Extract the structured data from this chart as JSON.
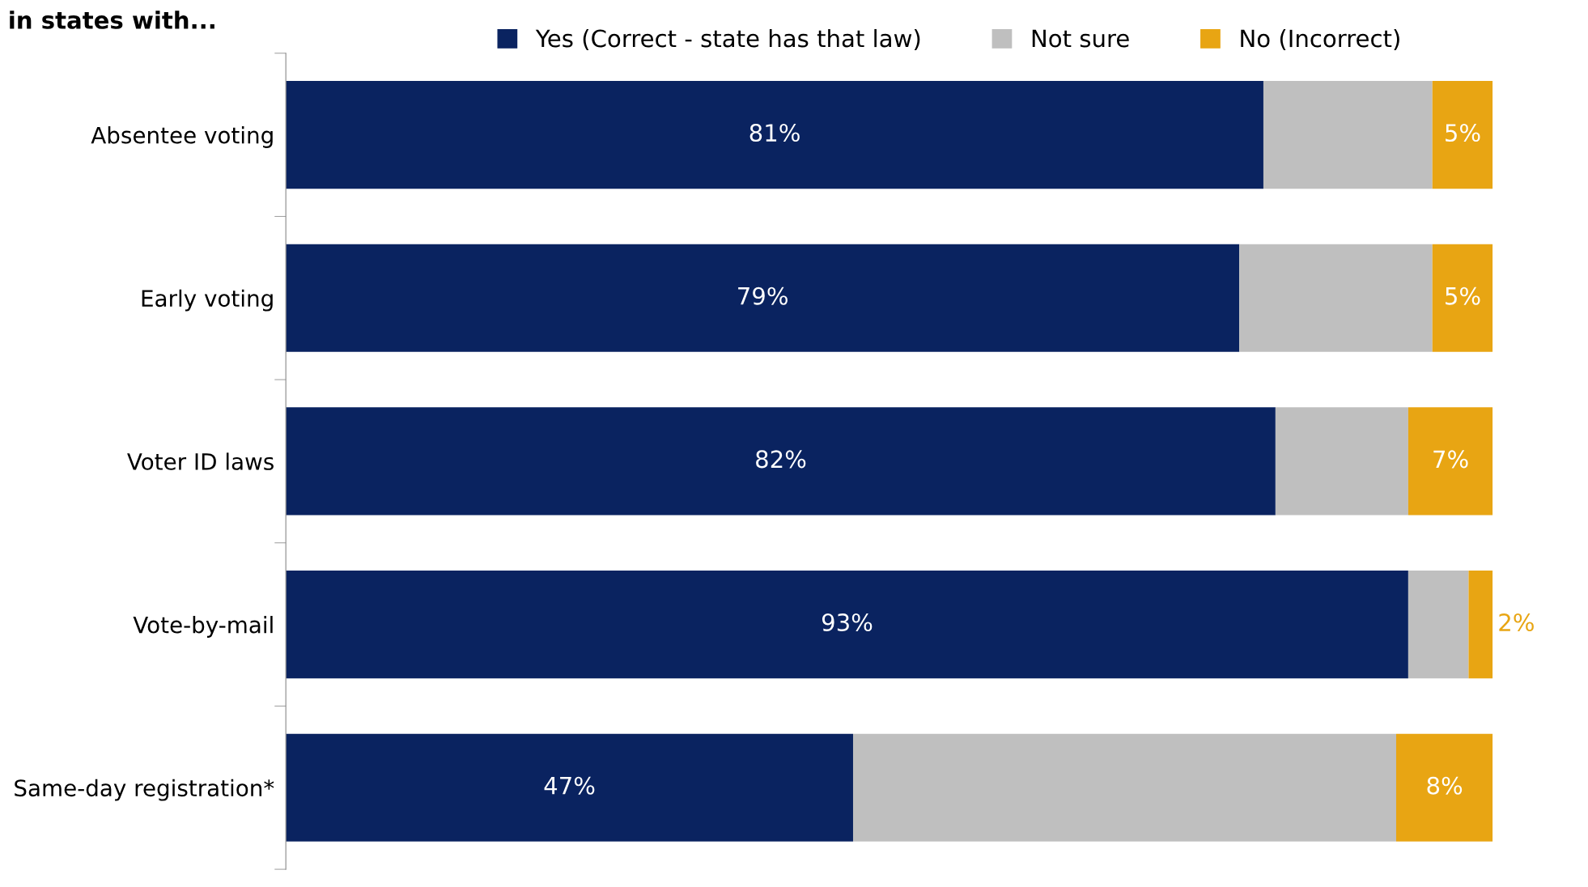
{
  "chart_data": {
    "type": "bar",
    "orientation": "horizontal",
    "stacked": true,
    "title": "in states with...",
    "categories": [
      "Absentee voting",
      "Early voting",
      "Voter ID laws",
      "Vote-by-mail",
      "Same-day registration*"
    ],
    "series": [
      {
        "name": "Yes (Correct - state has that law)",
        "color": "#0a2360",
        "values": [
          81,
          79,
          82,
          93,
          47
        ],
        "value_labels": [
          "81%",
          "79%",
          "82%",
          "93%",
          "47%"
        ]
      },
      {
        "name": "Not sure",
        "color": "#bfbfbf",
        "values": [
          14,
          16,
          11,
          5,
          45
        ],
        "value_labels": [
          null,
          null,
          null,
          null,
          null
        ]
      },
      {
        "name": "No (Incorrect)",
        "color": "#e8a513",
        "values": [
          5,
          5,
          7,
          2,
          8
        ],
        "value_labels": [
          "5%",
          "5%",
          "7%",
          "2%",
          "8%"
        ]
      }
    ],
    "xlim": [
      0,
      100
    ],
    "tick_labels": "y",
    "legend": "top",
    "grid": false
  }
}
